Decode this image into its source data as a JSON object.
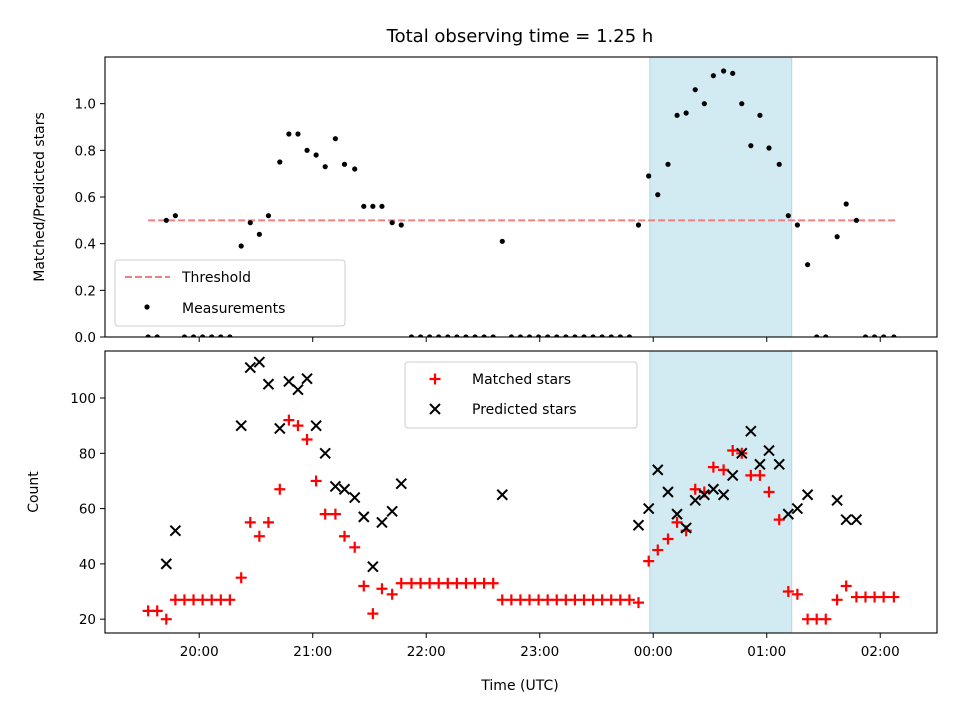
{
  "chart_data": {
    "title": "Total observing time = 1.25 h",
    "x_axis": {
      "label": "Time (UTC)",
      "ticks": [
        "20:00",
        "21:00",
        "22:00",
        "23:00",
        "00:00",
        "01:00",
        "02:00"
      ],
      "tick_hours": [
        20,
        21,
        22,
        23,
        24,
        25,
        26
      ],
      "range_hours": [
        19.17,
        26.5
      ]
    },
    "observing_window": {
      "start_hours": 23.97,
      "end_hours": 25.22,
      "color": "#add8e6"
    },
    "panels": [
      {
        "type": "scatter",
        "ylabel": "Matched/Predicted stars",
        "ylim": [
          0,
          1.2
        ],
        "yticks": [
          "0.0",
          "0.2",
          "0.4",
          "0.6",
          "0.8",
          "1.0"
        ],
        "ytick_values": [
          0,
          0.2,
          0.4,
          0.6,
          0.8,
          1.0
        ],
        "legend_position": "lower left",
        "threshold": {
          "name": "Threshold",
          "value": 0.5,
          "x_range_hours": [
            19.55,
            26.15
          ],
          "color": "#f08080"
        },
        "series": [
          {
            "name": "Measurements",
            "marker": "dot",
            "color": "#000000",
            "points": [
              [
                19.55,
                0
              ],
              [
                19.63,
                0
              ],
              [
                19.71,
                0.5
              ],
              [
                19.79,
                0.52
              ],
              [
                19.87,
                0
              ],
              [
                19.95,
                0
              ],
              [
                20.03,
                0
              ],
              [
                20.11,
                0
              ],
              [
                20.19,
                0
              ],
              [
                20.27,
                0
              ],
              [
                20.37,
                0.39
              ],
              [
                20.45,
                0.49
              ],
              [
                20.53,
                0.44
              ],
              [
                20.61,
                0.52
              ],
              [
                20.71,
                0.75
              ],
              [
                20.79,
                0.87
              ],
              [
                20.87,
                0.87
              ],
              [
                20.95,
                0.8
              ],
              [
                21.03,
                0.78
              ],
              [
                21.11,
                0.73
              ],
              [
                21.2,
                0.85
              ],
              [
                21.28,
                0.74
              ],
              [
                21.37,
                0.72
              ],
              [
                21.45,
                0.56
              ],
              [
                21.53,
                0.56
              ],
              [
                21.61,
                0.56
              ],
              [
                21.7,
                0.49
              ],
              [
                21.78,
                0.48
              ],
              [
                21.87,
                0
              ],
              [
                21.95,
                0
              ],
              [
                22.03,
                0
              ],
              [
                22.11,
                0
              ],
              [
                22.19,
                0
              ],
              [
                22.27,
                0
              ],
              [
                22.35,
                0
              ],
              [
                22.43,
                0
              ],
              [
                22.51,
                0
              ],
              [
                22.59,
                0
              ],
              [
                22.67,
                0.41
              ],
              [
                22.75,
                0
              ],
              [
                22.83,
                0
              ],
              [
                22.91,
                0
              ],
              [
                22.99,
                0
              ],
              [
                23.07,
                0
              ],
              [
                23.15,
                0
              ],
              [
                23.23,
                0
              ],
              [
                23.31,
                0
              ],
              [
                23.39,
                0
              ],
              [
                23.47,
                0
              ],
              [
                23.55,
                0
              ],
              [
                23.63,
                0
              ],
              [
                23.71,
                0
              ],
              [
                23.79,
                0
              ],
              [
                23.87,
                0.48
              ],
              [
                23.96,
                0.69
              ],
              [
                24.04,
                0.61
              ],
              [
                24.13,
                0.74
              ],
              [
                24.21,
                0.95
              ],
              [
                24.29,
                0.96
              ],
              [
                24.37,
                1.06
              ],
              [
                24.45,
                1.0
              ],
              [
                24.53,
                1.12
              ],
              [
                24.62,
                1.14
              ],
              [
                24.7,
                1.13
              ],
              [
                24.78,
                1.0
              ],
              [
                24.86,
                0.82
              ],
              [
                24.94,
                0.95
              ],
              [
                25.02,
                0.81
              ],
              [
                25.11,
                0.74
              ],
              [
                25.19,
                0.52
              ],
              [
                25.27,
                0.48
              ],
              [
                25.36,
                0.31
              ],
              [
                25.44,
                0
              ],
              [
                25.52,
                0
              ],
              [
                25.62,
                0.43
              ],
              [
                25.7,
                0.57
              ],
              [
                25.79,
                0.5
              ],
              [
                25.87,
                0
              ],
              [
                25.95,
                0
              ],
              [
                26.03,
                0
              ],
              [
                26.12,
                0
              ]
            ]
          }
        ]
      },
      {
        "type": "scatter",
        "ylabel": "Count",
        "ylim": [
          15,
          117
        ],
        "yticks": [
          "20",
          "40",
          "60",
          "80",
          "100"
        ],
        "ytick_values": [
          20,
          40,
          60,
          80,
          100
        ],
        "legend_position": "upper center",
        "series": [
          {
            "name": "Matched stars",
            "marker": "plus",
            "color": "#ff0000",
            "points": [
              [
                19.55,
                23
              ],
              [
                19.63,
                23
              ],
              [
                19.71,
                20
              ],
              [
                19.79,
                27
              ],
              [
                19.87,
                27
              ],
              [
                19.95,
                27
              ],
              [
                20.03,
                27
              ],
              [
                20.11,
                27
              ],
              [
                20.19,
                27
              ],
              [
                20.27,
                27
              ],
              [
                20.37,
                35
              ],
              [
                20.45,
                55
              ],
              [
                20.53,
                50
              ],
              [
                20.61,
                55
              ],
              [
                20.71,
                67
              ],
              [
                20.79,
                92
              ],
              [
                20.87,
                90
              ],
              [
                20.95,
                85
              ],
              [
                21.03,
                70
              ],
              [
                21.11,
                58
              ],
              [
                21.2,
                58
              ],
              [
                21.28,
                50
              ],
              [
                21.37,
                46
              ],
              [
                21.45,
                32
              ],
              [
                21.53,
                22
              ],
              [
                21.61,
                31
              ],
              [
                21.7,
                29
              ],
              [
                21.78,
                33
              ],
              [
                21.87,
                33
              ],
              [
                21.95,
                33
              ],
              [
                22.03,
                33
              ],
              [
                22.11,
                33
              ],
              [
                22.19,
                33
              ],
              [
                22.27,
                33
              ],
              [
                22.35,
                33
              ],
              [
                22.43,
                33
              ],
              [
                22.51,
                33
              ],
              [
                22.59,
                33
              ],
              [
                22.67,
                27
              ],
              [
                22.75,
                27
              ],
              [
                22.83,
                27
              ],
              [
                22.91,
                27
              ],
              [
                22.99,
                27
              ],
              [
                23.07,
                27
              ],
              [
                23.15,
                27
              ],
              [
                23.23,
                27
              ],
              [
                23.31,
                27
              ],
              [
                23.39,
                27
              ],
              [
                23.47,
                27
              ],
              [
                23.55,
                27
              ],
              [
                23.63,
                27
              ],
              [
                23.71,
                27
              ],
              [
                23.79,
                27
              ],
              [
                23.87,
                26
              ],
              [
                23.96,
                41
              ],
              [
                24.04,
                45
              ],
              [
                24.13,
                49
              ],
              [
                24.21,
                55
              ],
              [
                24.29,
                52
              ],
              [
                24.37,
                67
              ],
              [
                24.45,
                66
              ],
              [
                24.53,
                75
              ],
              [
                24.62,
                74
              ],
              [
                24.7,
                81
              ],
              [
                24.78,
                80
              ],
              [
                24.86,
                72
              ],
              [
                24.94,
                72
              ],
              [
                25.02,
                66
              ],
              [
                25.11,
                56
              ],
              [
                25.19,
                30
              ],
              [
                25.27,
                29
              ],
              [
                25.36,
                20
              ],
              [
                25.44,
                20
              ],
              [
                25.52,
                20
              ],
              [
                25.62,
                27
              ],
              [
                25.7,
                32
              ],
              [
                25.79,
                28
              ],
              [
                25.87,
                28
              ],
              [
                25.95,
                28
              ],
              [
                26.03,
                28
              ],
              [
                26.12,
                28
              ]
            ]
          },
          {
            "name": "Predicted stars",
            "marker": "x",
            "color": "#000000",
            "points": [
              [
                19.71,
                40
              ],
              [
                19.79,
                52
              ],
              [
                20.37,
                90
              ],
              [
                20.45,
                111
              ],
              [
                20.53,
                113
              ],
              [
                20.61,
                105
              ],
              [
                20.71,
                89
              ],
              [
                20.79,
                106
              ],
              [
                20.87,
                103
              ],
              [
                20.95,
                107
              ],
              [
                21.03,
                90
              ],
              [
                21.11,
                80
              ],
              [
                21.2,
                68
              ],
              [
                21.28,
                67
              ],
              [
                21.37,
                64
              ],
              [
                21.45,
                57
              ],
              [
                21.53,
                39
              ],
              [
                21.61,
                55
              ],
              [
                21.7,
                59
              ],
              [
                21.78,
                69
              ],
              [
                22.67,
                65
              ],
              [
                23.87,
                54
              ],
              [
                23.96,
                60
              ],
              [
                24.04,
                74
              ],
              [
                24.13,
                66
              ],
              [
                24.21,
                58
              ],
              [
                24.29,
                53
              ],
              [
                24.37,
                63
              ],
              [
                24.45,
                65
              ],
              [
                24.53,
                67
              ],
              [
                24.62,
                65
              ],
              [
                24.7,
                72
              ],
              [
                24.78,
                80
              ],
              [
                24.86,
                88
              ],
              [
                24.94,
                76
              ],
              [
                25.02,
                81
              ],
              [
                25.11,
                76
              ],
              [
                25.19,
                58
              ],
              [
                25.27,
                60
              ],
              [
                25.36,
                65
              ],
              [
                25.62,
                63
              ],
              [
                25.7,
                56
              ],
              [
                25.79,
                56
              ]
            ]
          }
        ]
      }
    ]
  }
}
